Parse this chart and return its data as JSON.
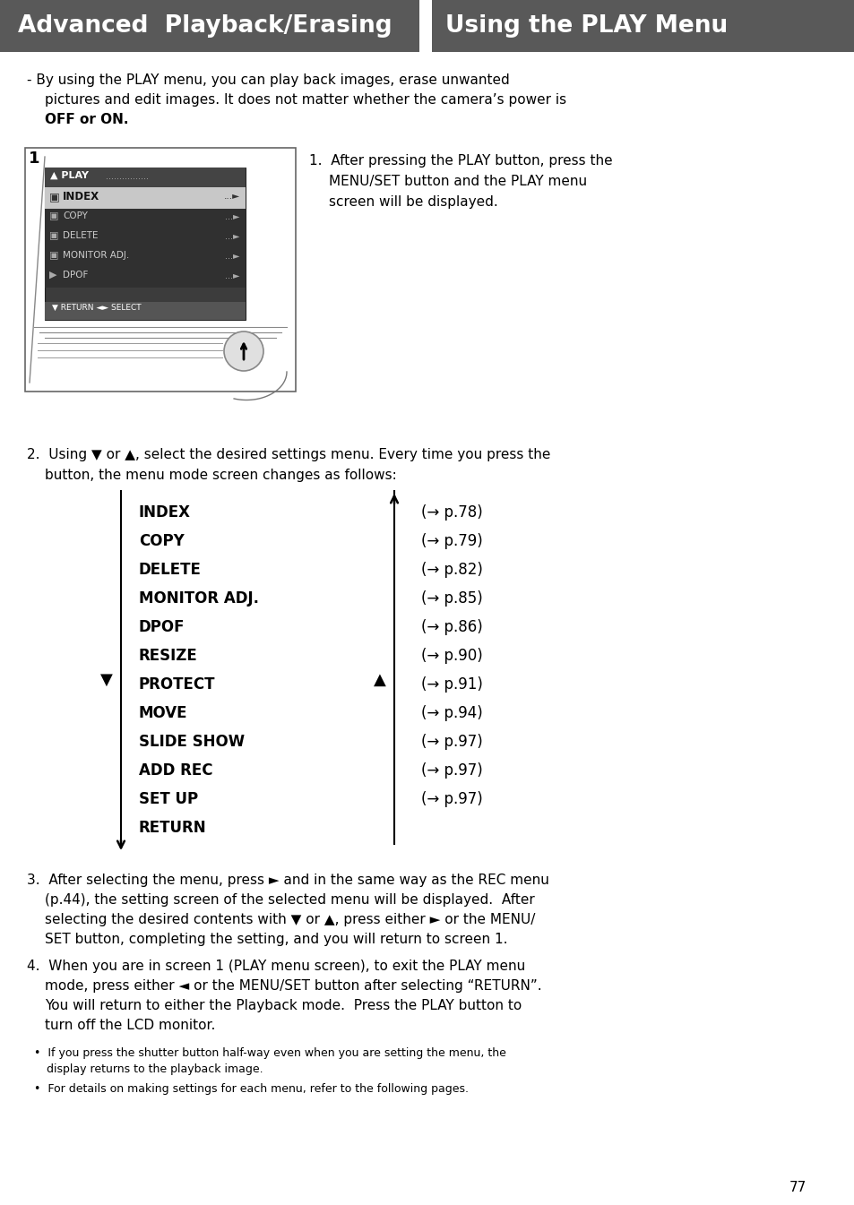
{
  "header_left_text": "Advanced  Playback/Erasing",
  "header_right_text": "Using the PLAY Menu",
  "header_bg": "#595959",
  "header_text_color": "#ffffff",
  "page_bg": "#ffffff",
  "body_text_color": "#000000",
  "menu_items_left": [
    "INDEX",
    "COPY",
    "DELETE",
    "MONITOR ADJ.",
    "DPOF",
    "RESIZE",
    "PROTECT",
    "MOVE",
    "SLIDE SHOW",
    "ADD REC",
    "SET UP",
    "RETURN"
  ],
  "menu_items_right": [
    "(→ p.78)",
    "(→ p.79)",
    "(→ p.82)",
    "(→ p.85)",
    "(→ p.86)",
    "(→ p.90)",
    "(→ p.91)",
    "(→ p.94)",
    "(→ p.97)",
    "(→ p.97)",
    "(→ p.97)",
    ""
  ],
  "page_number": "77"
}
